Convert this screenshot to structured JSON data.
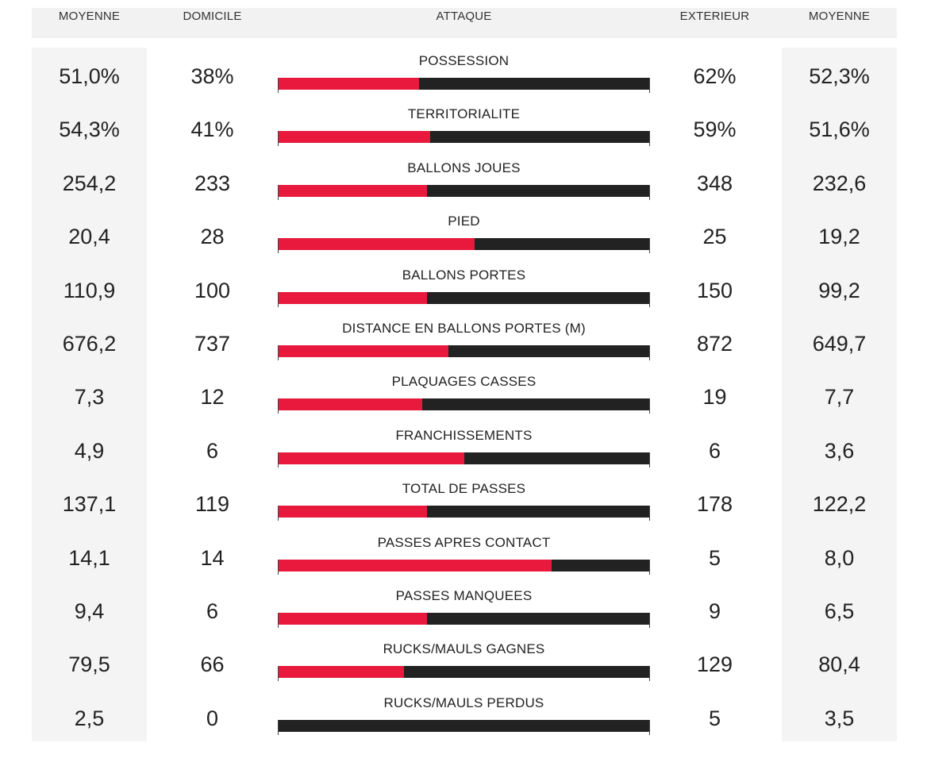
{
  "header": {
    "avg_home": "MOYENNE",
    "home": "DOMICILE",
    "section": "ATTAQUE",
    "away": "EXTERIEUR",
    "avg_away": "MOYENNE"
  },
  "colors": {
    "home_bar": "#e8193c",
    "away_bar": "#222222",
    "avg_column_bg": "#f4f4f4",
    "header_bg": "#f2f2f2"
  },
  "rows": [
    {
      "label": "POSSESSION",
      "avg_home": "51,0%",
      "home": "38%",
      "away": "62%",
      "avg_away": "52,3%",
      "home_share": 0.38
    },
    {
      "label": "TERRITORIALITE",
      "avg_home": "54,3%",
      "home": "41%",
      "away": "59%",
      "avg_away": "51,6%",
      "home_share": 0.41
    },
    {
      "label": "BALLONS JOUES",
      "avg_home": "254,2",
      "home": "233",
      "away": "348",
      "avg_away": "232,6",
      "home_share": 0.401
    },
    {
      "label": "PIED",
      "avg_home": "20,4",
      "home": "28",
      "away": "25",
      "avg_away": "19,2",
      "home_share": 0.528
    },
    {
      "label": "BALLONS PORTES",
      "avg_home": "110,9",
      "home": "100",
      "away": "150",
      "avg_away": "99,2",
      "home_share": 0.4
    },
    {
      "label": "DISTANCE EN BALLONS PORTES (M)",
      "avg_home": "676,2",
      "home": "737",
      "away": "872",
      "avg_away": "649,7",
      "home_share": 0.458
    },
    {
      "label": "PLAQUAGES CASSES",
      "avg_home": "7,3",
      "home": "12",
      "away": "19",
      "avg_away": "7,7",
      "home_share": 0.387
    },
    {
      "label": "FRANCHISSEMENTS",
      "avg_home": "4,9",
      "home": "6",
      "away": "6",
      "avg_away": "3,6",
      "home_share": 0.5
    },
    {
      "label": "TOTAL DE PASSES",
      "avg_home": "137,1",
      "home": "119",
      "away": "178",
      "avg_away": "122,2",
      "home_share": 0.401
    },
    {
      "label": "PASSES APRES CONTACT",
      "avg_home": "14,1",
      "home": "14",
      "away": "5",
      "avg_away": "8,0",
      "home_share": 0.737
    },
    {
      "label": "PASSES MANQUEES",
      "avg_home": "9,4",
      "home": "6",
      "away": "9",
      "avg_away": "6,5",
      "home_share": 0.4
    },
    {
      "label": "RUCKS/MAULS GAGNES",
      "avg_home": "79,5",
      "home": "66",
      "away": "129",
      "avg_away": "80,4",
      "home_share": 0.338
    },
    {
      "label": "RUCKS/MAULS PERDUS",
      "avg_home": "2,5",
      "home": "0",
      "away": "5",
      "avg_away": "3,5",
      "home_share": 0.0
    }
  ]
}
